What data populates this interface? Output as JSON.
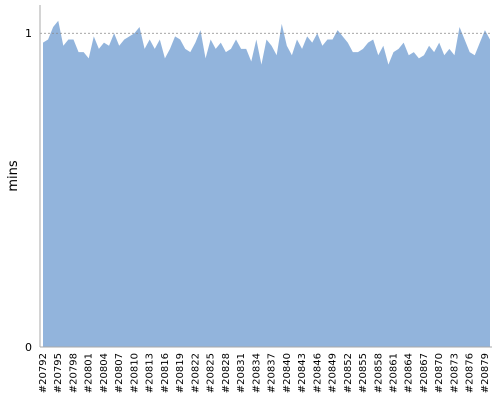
{
  "chart_data": {
    "type": "area",
    "y_label": "mins",
    "color": "#92b4dc",
    "categories": [
      "#20792",
      null,
      null,
      "#20795",
      null,
      null,
      "#20798",
      null,
      null,
      "#20801",
      null,
      null,
      "#20804",
      null,
      null,
      "#20807",
      null,
      null,
      "#20810",
      null,
      null,
      "#20813",
      null,
      null,
      "#20816",
      null,
      null,
      "#20819",
      null,
      null,
      "#20822",
      null,
      null,
      "#20825",
      null,
      null,
      "#20828",
      null,
      null,
      "#20831",
      null,
      null,
      "#20834",
      null,
      null,
      "#20837",
      null,
      null,
      "#20840",
      null,
      null,
      "#20843",
      null,
      null,
      "#20846",
      null,
      null,
      "#20849",
      null,
      null,
      "#20852",
      null,
      null,
      "#20855",
      null,
      null,
      "#20858",
      null,
      null,
      "#20861",
      null,
      null,
      "#20864",
      null,
      null,
      "#20867",
      null,
      null,
      "#20870",
      null,
      null,
      "#20873",
      null,
      null,
      "#20876",
      null,
      null,
      "#20879",
      null
    ],
    "values": [
      0.97,
      0.98,
      1.02,
      1.04,
      0.96,
      0.98,
      0.98,
      0.94,
      0.94,
      0.92,
      0.99,
      0.95,
      0.97,
      0.96,
      1.0,
      0.96,
      0.98,
      0.99,
      1.0,
      1.02,
      0.95,
      0.98,
      0.95,
      0.98,
      0.92,
      0.95,
      0.99,
      0.98,
      0.95,
      0.94,
      0.97,
      1.01,
      0.92,
      0.98,
      0.95,
      0.97,
      0.94,
      0.95,
      0.98,
      0.95,
      0.95,
      0.91,
      0.98,
      0.9,
      0.98,
      0.96,
      0.93,
      1.03,
      0.96,
      0.93,
      0.98,
      0.95,
      0.99,
      0.97,
      1.0,
      0.96,
      0.98,
      0.98,
      1.01,
      0.99,
      0.97,
      0.94,
      0.94,
      0.95,
      0.97,
      0.98,
      0.93,
      0.96,
      0.9,
      0.94,
      0.95,
      0.97,
      0.93,
      0.94,
      0.92,
      0.93,
      0.96,
      0.94,
      0.97,
      0.93,
      0.95,
      0.93,
      1.02,
      0.98,
      0.94,
      0.93,
      0.97,
      1.01,
      0.98
    ],
    "ylim": [
      0,
      1.09
    ],
    "yticks": [
      0,
      1
    ],
    "grid": true
  }
}
